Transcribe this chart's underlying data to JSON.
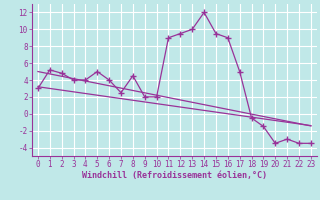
{
  "title": "",
  "xlabel": "Windchill (Refroidissement éolien,°C)",
  "ylabel": "",
  "bg_color": "#c0e8e8",
  "grid_color": "#ffffff",
  "line_color": "#993399",
  "xlim": [
    -0.5,
    23.5
  ],
  "ylim": [
    -5.0,
    13.0
  ],
  "yticks": [
    -4,
    -2,
    0,
    2,
    4,
    6,
    8,
    10,
    12
  ],
  "xticks": [
    0,
    1,
    2,
    3,
    4,
    5,
    6,
    7,
    8,
    9,
    10,
    11,
    12,
    13,
    14,
    15,
    16,
    17,
    18,
    19,
    20,
    21,
    22,
    23
  ],
  "main_x": [
    0,
    1,
    2,
    3,
    4,
    5,
    6,
    7,
    8,
    9,
    10,
    11,
    12,
    13,
    14,
    15,
    16,
    17,
    18,
    19,
    20,
    21,
    22,
    23
  ],
  "main_y": [
    3.0,
    5.2,
    4.8,
    4.0,
    4.0,
    5.0,
    4.0,
    2.5,
    4.5,
    2.0,
    2.0,
    9.0,
    9.5,
    10.0,
    12.0,
    9.5,
    9.0,
    5.0,
    -0.5,
    -1.5,
    -3.5,
    -3.0,
    -3.5,
    -3.5
  ],
  "reg1_x": [
    0,
    1,
    2,
    3,
    4,
    5,
    6,
    7,
    8,
    9,
    10,
    11,
    12,
    13,
    14,
    15,
    16,
    17,
    18,
    19,
    20,
    21,
    22,
    23
  ],
  "reg1_y": [
    3.2,
    3.0,
    2.8,
    2.6,
    2.4,
    2.2,
    2.0,
    1.8,
    1.6,
    1.4,
    1.2,
    1.0,
    0.8,
    0.6,
    0.4,
    0.2,
    0.0,
    -0.2,
    -0.4,
    -0.6,
    -0.8,
    -1.0,
    -1.2,
    -1.4
  ],
  "reg2_x": [
    0,
    1,
    2,
    3,
    4,
    5,
    6,
    7,
    8,
    9,
    10,
    11,
    12,
    13,
    14,
    15,
    16,
    17,
    18,
    19,
    20,
    21,
    22,
    23
  ],
  "reg2_y": [
    5.0,
    4.72,
    4.44,
    4.16,
    3.88,
    3.6,
    3.32,
    3.04,
    2.76,
    2.48,
    2.2,
    1.92,
    1.64,
    1.36,
    1.08,
    0.8,
    0.52,
    0.24,
    -0.04,
    -0.32,
    -0.6,
    -0.88,
    -1.16,
    -1.44
  ],
  "marker_size": 4,
  "line_width": 0.9,
  "xlabel_fontsize": 6.0,
  "tick_fontsize": 5.5
}
